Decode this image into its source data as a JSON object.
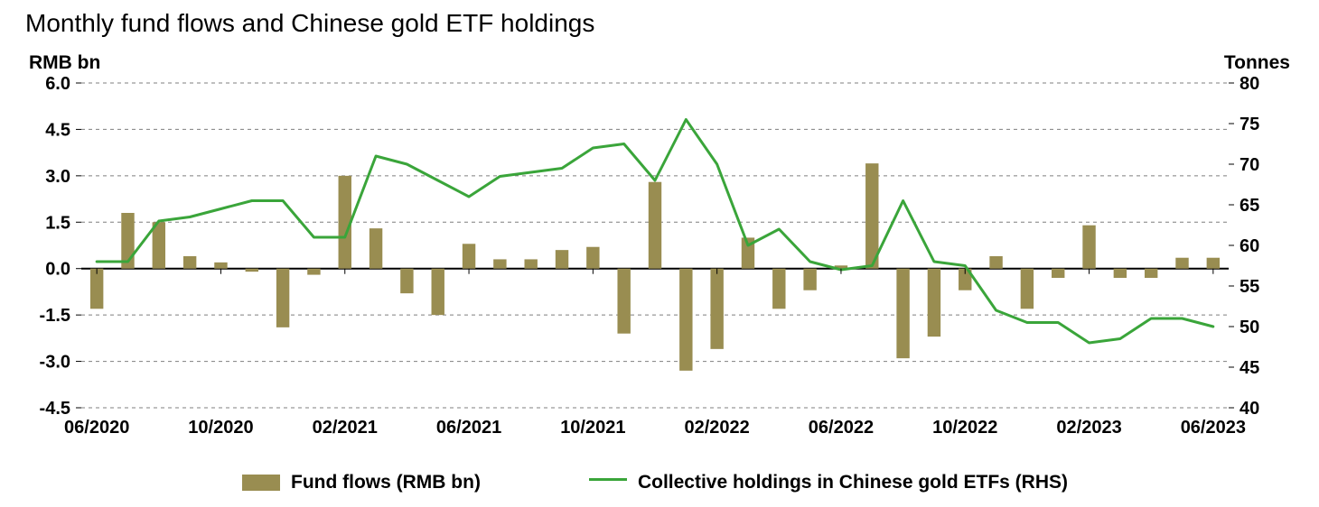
{
  "chart": {
    "type": "bar+line-dual-axis",
    "title": "Monthly fund flows and Chinese gold ETF holdings",
    "title_fontsize": 28,
    "background_color": "#ffffff",
    "grid_color": "#7f7f7f",
    "grid_dash": "4 4",
    "grid_width": 1,
    "baseline_color": "#000000",
    "baseline_width": 2,
    "axis_left": {
      "label": "RMB bn",
      "min": -4.5,
      "max": 6.0,
      "ticks": [
        -4.5,
        -3.0,
        -1.5,
        0.0,
        1.5,
        3.0,
        4.5,
        6.0
      ],
      "tick_labels": [
        "-4.5",
        "-3.0",
        "-1.5",
        "0.0",
        "1.5",
        "3.0",
        "4.5",
        "6.0"
      ],
      "label_fontsize": 21,
      "tick_fontsize": 20,
      "font_weight": "bold"
    },
    "axis_right": {
      "label": "Tonnes",
      "min": 40,
      "max": 80,
      "ticks": [
        40,
        45,
        50,
        55,
        60,
        65,
        70,
        75,
        80
      ],
      "tick_labels": [
        "40",
        "45",
        "50",
        "55",
        "60",
        "65",
        "70",
        "75",
        "80"
      ],
      "label_fontsize": 21,
      "tick_fontsize": 20,
      "font_weight": "bold"
    },
    "x": {
      "count": 37,
      "tick_indices": [
        0,
        4,
        8,
        12,
        16,
        20,
        24,
        28,
        32,
        36
      ],
      "tick_labels": [
        "06/2020",
        "10/2020",
        "02/2021",
        "06/2021",
        "10/2021",
        "02/2022",
        "06/2022",
        "10/2022",
        "02/2023",
        "06/2023"
      ],
      "tick_fontsize": 20,
      "font_weight": "bold"
    },
    "bars": {
      "label": "Fund flows (RMB bn)",
      "color": "#998d51",
      "width_ratio": 0.42,
      "values": [
        -1.3,
        1.8,
        1.5,
        0.4,
        0.2,
        -0.1,
        -1.9,
        -0.2,
        3.0,
        1.3,
        -0.8,
        -1.5,
        0.8,
        0.3,
        0.3,
        0.6,
        0.7,
        -2.1,
        2.8,
        -3.3,
        -2.6,
        1.0,
        -1.3,
        -0.7,
        0.1,
        3.4,
        -2.9,
        -2.2,
        -0.7,
        0.4,
        -1.3,
        -0.3,
        1.4,
        -0.3,
        -0.3,
        0.35,
        0.35
      ]
    },
    "line": {
      "label": "Collective holdings in Chinese gold ETFs (RHS)",
      "color": "#3aa53a",
      "width": 3,
      "values": [
        58,
        58,
        63,
        63.5,
        64.5,
        65.5,
        65.5,
        61,
        61,
        71,
        70,
        68,
        66,
        68.5,
        69,
        69.5,
        72,
        72.5,
        68,
        75.5,
        70,
        60,
        62,
        58,
        57,
        57.5,
        65.5,
        58,
        57.5,
        52,
        50.5,
        50.5,
        48,
        48.5,
        51,
        51,
        50
      ]
    },
    "legend": {
      "items": [
        {
          "type": "bar",
          "label": "Fund flows (RMB bn)",
          "color": "#998d51"
        },
        {
          "type": "line",
          "label": "Collective holdings in Chinese gold ETFs (RHS)",
          "color": "#3aa53a"
        }
      ],
      "fontsize": 21,
      "font_weight": "bold"
    }
  }
}
